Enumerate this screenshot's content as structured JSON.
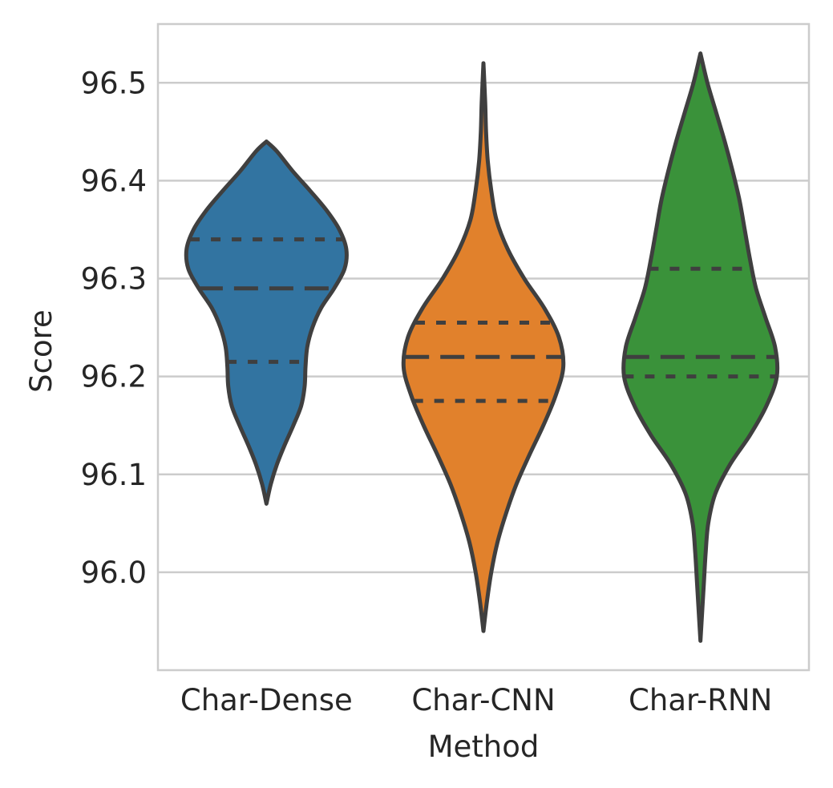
{
  "chart_data": {
    "type": "violin",
    "xlabel": "Method",
    "ylabel": "Score",
    "ylim": [
      95.9,
      96.56
    ],
    "yticks": [
      "96.0",
      "96.1",
      "96.2",
      "96.3",
      "96.4",
      "96.5"
    ],
    "grid": true,
    "categories": [
      "Char-Dense",
      "Char-CNN",
      "Char-RNN"
    ],
    "series": [
      {
        "category": "Char-Dense",
        "color": "#3274a1",
        "min": 96.07,
        "max": 96.44,
        "q1": 96.215,
        "median": 96.29,
        "q3": 96.34,
        "density": [
          [
            96.07,
            0.0
          ],
          [
            96.09,
            0.05
          ],
          [
            96.11,
            0.12
          ],
          [
            96.13,
            0.21
          ],
          [
            96.15,
            0.31
          ],
          [
            96.17,
            0.4
          ],
          [
            96.19,
            0.44
          ],
          [
            96.21,
            0.45
          ],
          [
            96.23,
            0.47
          ],
          [
            96.25,
            0.53
          ],
          [
            96.27,
            0.63
          ],
          [
            96.29,
            0.78
          ],
          [
            96.31,
            0.9
          ],
          [
            96.33,
            0.92
          ],
          [
            96.35,
            0.84
          ],
          [
            96.37,
            0.69
          ],
          [
            96.39,
            0.5
          ],
          [
            96.41,
            0.3
          ],
          [
            96.43,
            0.12
          ],
          [
            96.44,
            0.0
          ]
        ]
      },
      {
        "category": "Char-CNN",
        "color": "#e1812c",
        "min": 95.94,
        "max": 96.52,
        "q1": 96.175,
        "median": 96.22,
        "q3": 96.255,
        "density": [
          [
            95.94,
            0.0
          ],
          [
            95.97,
            0.04
          ],
          [
            96.0,
            0.09
          ],
          [
            96.03,
            0.16
          ],
          [
            96.06,
            0.26
          ],
          [
            96.09,
            0.38
          ],
          [
            96.12,
            0.53
          ],
          [
            96.15,
            0.69
          ],
          [
            96.18,
            0.83
          ],
          [
            96.21,
            0.92
          ],
          [
            96.24,
            0.87
          ],
          [
            96.27,
            0.7
          ],
          [
            96.3,
            0.47
          ],
          [
            96.33,
            0.28
          ],
          [
            96.36,
            0.15
          ],
          [
            96.39,
            0.09
          ],
          [
            96.42,
            0.05
          ],
          [
            96.45,
            0.03
          ],
          [
            96.48,
            0.02
          ],
          [
            96.52,
            0.0
          ]
        ]
      },
      {
        "category": "Char-RNN",
        "color": "#3a923a",
        "min": 95.93,
        "max": 96.53,
        "q1": 96.2,
        "median": 96.22,
        "q3": 96.31,
        "density": [
          [
            95.93,
            0.0
          ],
          [
            95.96,
            0.02
          ],
          [
            95.99,
            0.04
          ],
          [
            96.02,
            0.06
          ],
          [
            96.05,
            0.09
          ],
          [
            96.08,
            0.17
          ],
          [
            96.11,
            0.34
          ],
          [
            96.14,
            0.57
          ],
          [
            96.17,
            0.76
          ],
          [
            96.2,
            0.88
          ],
          [
            96.23,
            0.86
          ],
          [
            96.26,
            0.75
          ],
          [
            96.29,
            0.64
          ],
          [
            96.32,
            0.57
          ],
          [
            96.35,
            0.51
          ],
          [
            96.38,
            0.45
          ],
          [
            96.41,
            0.37
          ],
          [
            96.44,
            0.28
          ],
          [
            96.47,
            0.18
          ],
          [
            96.5,
            0.08
          ],
          [
            96.53,
            0.0
          ]
        ]
      }
    ]
  }
}
